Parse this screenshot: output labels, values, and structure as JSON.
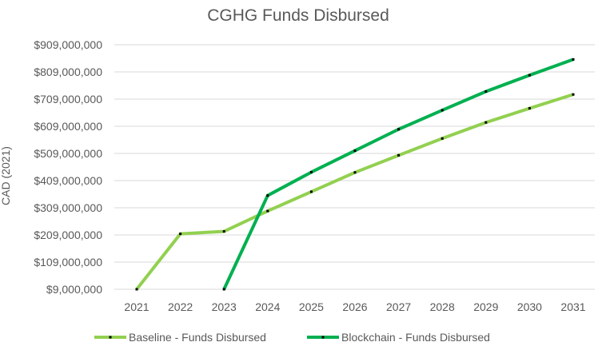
{
  "chart_data": {
    "type": "line",
    "title": "CGHG Funds Disbursed",
    "xlabel": "",
    "ylabel": "CAD (2021)",
    "categories": [
      "2021",
      "2022",
      "2023",
      "2024",
      "2025",
      "2026",
      "2027",
      "2028",
      "2029",
      "2030",
      "2031"
    ],
    "y_ticks": [
      "$9,000,000",
      "$109,000,000",
      "$209,000,000",
      "$309,000,000",
      "$409,000,000",
      "$509,000,000",
      "$609,000,000",
      "$709,000,000",
      "$809,000,000",
      "$909,000,000"
    ],
    "ylim": [
      9000000,
      909000000
    ],
    "grid": true,
    "legend_position": "bottom",
    "series": [
      {
        "name": "Baseline - Funds Disbursed",
        "color": "#92D050",
        "values": [
          9000000,
          213000000,
          222000000,
          297000000,
          368000000,
          439000000,
          502000000,
          564000000,
          623000000,
          675000000,
          726000000
        ]
      },
      {
        "name": "Blockchain - Funds Disbursed",
        "color": "#00B050",
        "values": [
          null,
          null,
          9000000,
          354000000,
          440000000,
          519000000,
          598000000,
          668000000,
          737000000,
          797000000,
          855000000
        ]
      }
    ]
  }
}
